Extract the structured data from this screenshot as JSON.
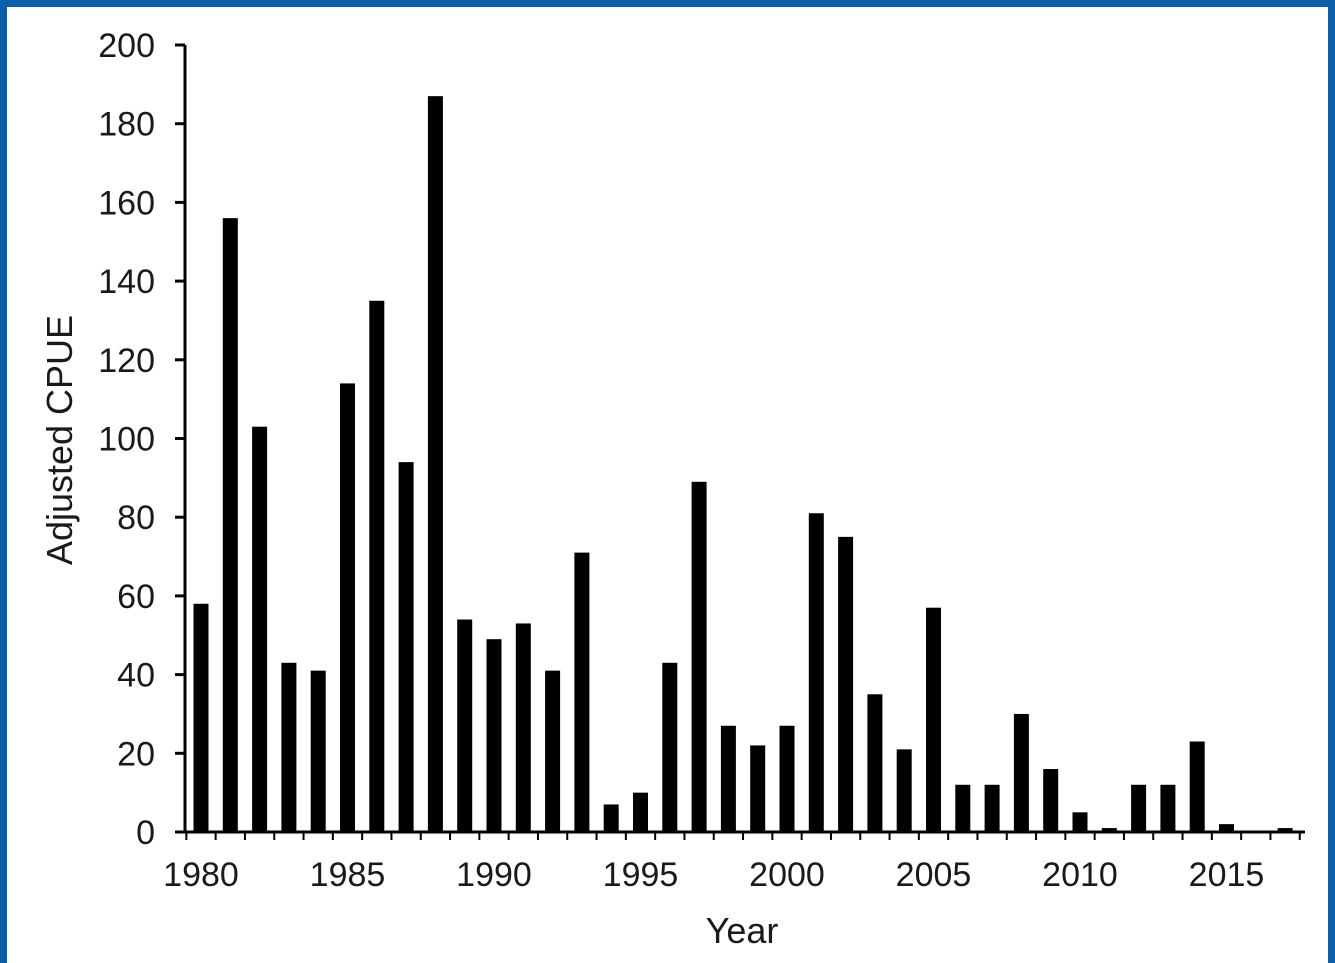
{
  "colors": {
    "frame_border": "#0a5fa8",
    "background": "#ffffff",
    "bars": "#000000",
    "axis": "#000000",
    "text": "#1a1a1a"
  },
  "chart_data": {
    "type": "bar",
    "title": "",
    "xlabel": "Year",
    "ylabel": "Adjusted CPUE",
    "ylim": [
      0,
      200
    ],
    "yticks": [
      0,
      20,
      40,
      60,
      80,
      100,
      120,
      140,
      160,
      180,
      200
    ],
    "xtick_labels": [
      1980,
      1985,
      1990,
      1995,
      2000,
      2005,
      2010,
      2015
    ],
    "grid": false,
    "legend": "none",
    "categories": [
      1980,
      1981,
      1982,
      1983,
      1984,
      1985,
      1986,
      1987,
      1988,
      1989,
      1990,
      1991,
      1992,
      1993,
      1994,
      1995,
      1996,
      1997,
      1998,
      1999,
      2000,
      2001,
      2002,
      2003,
      2004,
      2005,
      2006,
      2007,
      2008,
      2009,
      2010,
      2011,
      2012,
      2013,
      2014,
      2015,
      2016,
      2017
    ],
    "values": [
      58,
      156,
      103,
      43,
      41,
      114,
      135,
      94,
      187,
      54,
      49,
      53,
      41,
      71,
      7,
      10,
      43,
      89,
      27,
      22,
      27,
      81,
      75,
      35,
      21,
      57,
      12,
      12,
      30,
      16,
      5,
      1,
      12,
      12,
      23,
      2,
      0,
      1
    ]
  }
}
